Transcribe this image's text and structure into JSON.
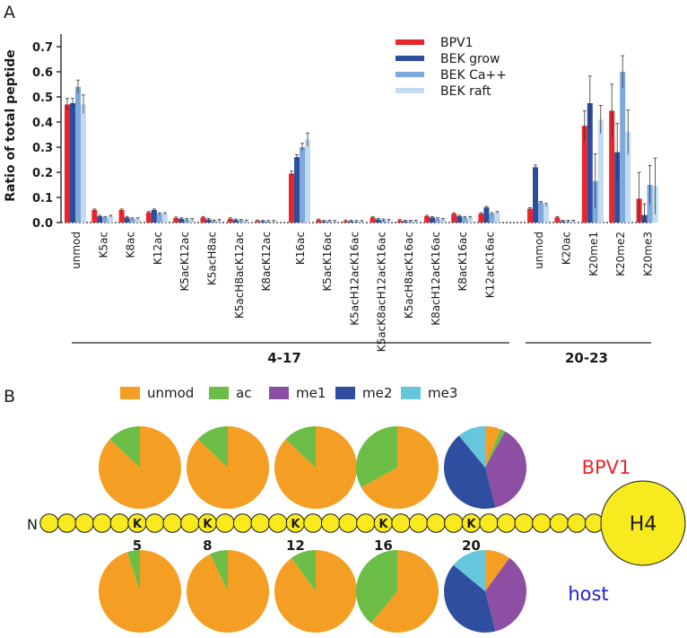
{
  "panel_labels": {
    "a": "A",
    "b": "B"
  },
  "colors": {
    "bpv1": "#e8262c",
    "bek_grow": "#2e4d9e",
    "bek_ca": "#7da9dc",
    "bek_raft": "#c4daf0",
    "unmod": "#f59e24",
    "ac": "#6cbd45",
    "me1": "#8c4fa3",
    "me2": "#2f4ea0",
    "me3": "#66c7dc",
    "bead": "#f7ea1e"
  },
  "chart_data": [
    {
      "type": "bar",
      "title": "",
      "xlabel": "",
      "ylabel": "Ratio of total peptide",
      "ylim": [
        0,
        0.75
      ],
      "yticks": [
        "0.0",
        "0.1",
        "0.2",
        "0.3",
        "0.4",
        "0.5",
        "0.6",
        "0.7"
      ],
      "grid": false,
      "legend_position": "top-right",
      "categories": [
        "unmod",
        "K5ac",
        "K8ac",
        "K12ac",
        "K5acK12ac",
        "K5acH8ac",
        "K5acH8acK12ac",
        "K8acK12ac",
        "K16ac",
        "K5acK16ac",
        "K5acH12acK16ac",
        "K5acK8acH12acK16ac",
        "K5acH8acK16ac",
        "K8acH12acK16ac",
        "K8acK16ac",
        "K12acK16ac",
        "unmod",
        "K20ac",
        "K20me1",
        "K20me2",
        "K20me3"
      ],
      "series": [
        {
          "name": "BPV1",
          "values": [
            0.47,
            0.05,
            0.05,
            0.04,
            0.018,
            0.02,
            0.015,
            0.006,
            0.195,
            0.01,
            0.006,
            0.02,
            0.008,
            0.025,
            0.035,
            0.035,
            0.055,
            0.02,
            0.385,
            0.445,
            0.095
          ]
        },
        {
          "name": "BEK grow",
          "values": [
            0.475,
            0.025,
            0.02,
            0.05,
            0.015,
            0.012,
            0.01,
            0.005,
            0.26,
            0.005,
            0.005,
            0.012,
            0.005,
            0.02,
            0.025,
            0.06,
            0.22,
            0.005,
            0.475,
            0.28,
            0.03
          ]
        },
        {
          "name": "BEK Ca++",
          "values": [
            0.54,
            0.02,
            0.015,
            0.035,
            0.012,
            0.006,
            0.008,
            0.004,
            0.3,
            0.005,
            0.004,
            0.01,
            0.005,
            0.015,
            0.02,
            0.035,
            0.08,
            0.005,
            0.165,
            0.6,
            0.15
          ]
        },
        {
          "name": "BEK raft",
          "values": [
            0.47,
            0.025,
            0.015,
            0.035,
            0.012,
            0.008,
            0.006,
            0.004,
            0.33,
            0.004,
            0.004,
            0.008,
            0.005,
            0.012,
            0.02,
            0.04,
            0.07,
            0.005,
            0.41,
            0.36,
            0.145
          ]
        }
      ],
      "groups": [
        {
          "label": "4-17",
          "from": "unmod",
          "to": "K12acK16ac"
        },
        {
          "label": "20-23",
          "from": "unmod",
          "to": "K20me3"
        }
      ]
    },
    {
      "type": "pie",
      "legend": [
        "unmod",
        "ac",
        "me1",
        "me2",
        "me3"
      ],
      "rows": [
        {
          "label": "BPV1",
          "pies": [
            {
              "site": "5",
              "slices": [
                0.87,
                0.13,
                0,
                0,
                0
              ]
            },
            {
              "site": "8",
              "slices": [
                0.87,
                0.13,
                0,
                0,
                0
              ]
            },
            {
              "site": "12",
              "slices": [
                0.87,
                0.13,
                0,
                0,
                0
              ]
            },
            {
              "site": "16",
              "slices": [
                0.67,
                0.33,
                0,
                0,
                0
              ]
            },
            {
              "site": "20",
              "slices": [
                0.06,
                0.02,
                0.38,
                0.43,
                0.11
              ]
            }
          ]
        },
        {
          "label": "host",
          "pies": [
            {
              "site": "5",
              "slices": [
                0.95,
                0.05,
                0,
                0,
                0
              ]
            },
            {
              "site": "8",
              "slices": [
                0.93,
                0.07,
                0,
                0,
                0
              ]
            },
            {
              "site": "12",
              "slices": [
                0.9,
                0.1,
                0,
                0,
                0
              ]
            },
            {
              "site": "16",
              "slices": [
                0.61,
                0.39,
                0,
                0,
                0
              ]
            },
            {
              "site": "20",
              "slices": [
                0.1,
                0,
                0.36,
                0.4,
                0.14
              ]
            }
          ]
        }
      ]
    }
  ],
  "peptide": {
    "n_label": "N",
    "residue": "K",
    "core_label": "H4"
  }
}
